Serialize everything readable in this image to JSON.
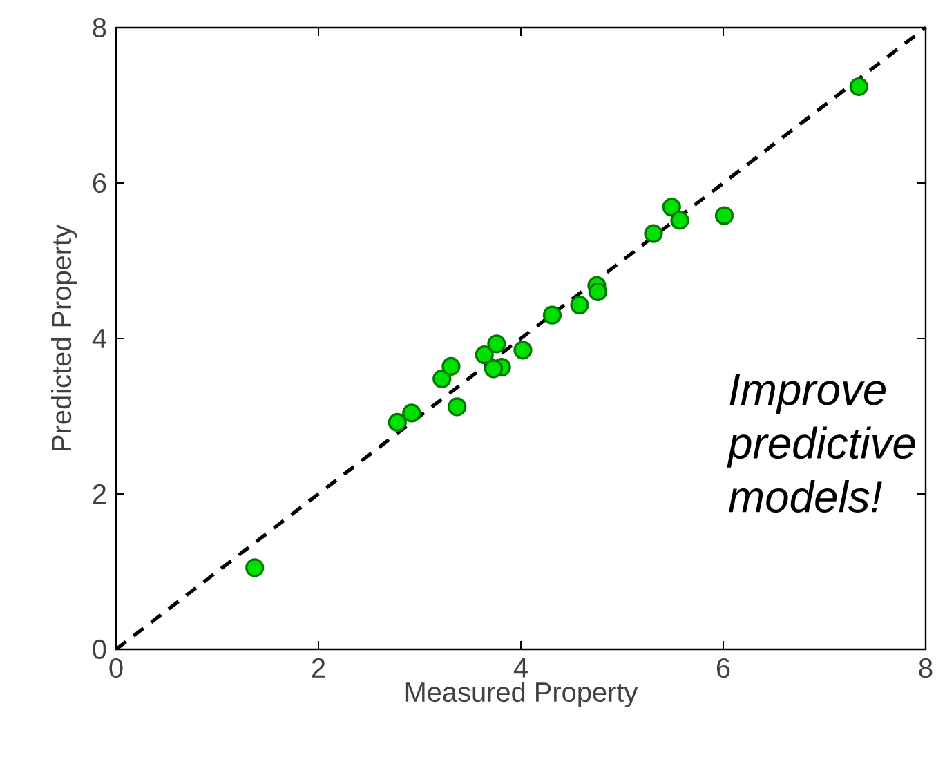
{
  "chart_data": {
    "type": "scatter",
    "xlabel": "Measured Property",
    "ylabel": "Predicted Property",
    "xlim": [
      0,
      8
    ],
    "ylim": [
      0,
      8
    ],
    "xticks": [
      0,
      2,
      4,
      6,
      8
    ],
    "yticks": [
      0,
      2,
      4,
      6,
      8
    ],
    "grid": false,
    "annotations": [
      "Improve predictive models!"
    ],
    "series": [
      {
        "type": "line",
        "x": [
          0,
          8
        ],
        "values": [
          0,
          8
        ],
        "color": "#000000",
        "line_style": "dashed",
        "marker": "none"
      },
      {
        "color": "#00e000",
        "marker": "circle",
        "x": [
          1.37,
          2.78,
          2.92,
          3.37,
          3.22,
          3.31,
          3.64,
          3.76,
          3.81,
          3.73,
          4.02,
          4.31,
          4.58,
          4.75,
          4.76,
          5.31,
          5.49,
          5.57,
          6.01,
          7.34
        ],
        "values": [
          1.05,
          2.92,
          3.04,
          3.12,
          3.48,
          3.64,
          3.79,
          3.93,
          3.63,
          3.61,
          3.85,
          4.3,
          4.43,
          4.68,
          4.6,
          5.35,
          5.69,
          5.52,
          5.58,
          7.24
        ]
      }
    ]
  }
}
